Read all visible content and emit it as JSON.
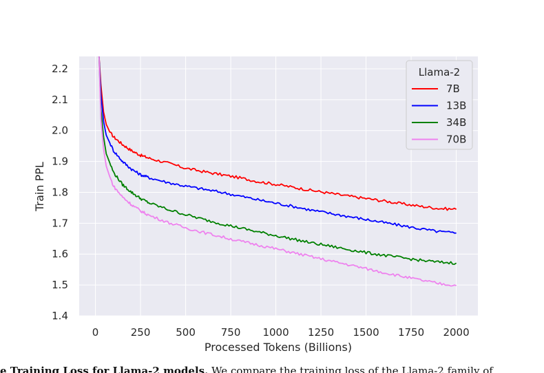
{
  "chart_data": {
    "type": "line",
    "title": "",
    "xlabel": "Processed Tokens (Billions)",
    "ylabel": "Train PPL",
    "xlim": [
      -90,
      2120
    ],
    "ylim": [
      1.4,
      2.24
    ],
    "xticks": [
      0,
      250,
      500,
      750,
      1000,
      1250,
      1500,
      1750,
      2000
    ],
    "yticks": [
      1.4,
      1.5,
      1.6,
      1.7,
      1.8,
      1.9,
      2.0,
      2.1,
      2.2
    ],
    "xtick_labels": [
      "0",
      "250",
      "500",
      "750",
      "1000",
      "1250",
      "1500",
      "1750",
      "2000"
    ],
    "ytick_labels": [
      "1.4",
      "1.5",
      "1.6",
      "1.7",
      "1.8",
      "1.9",
      "2.0",
      "2.1",
      "2.2"
    ],
    "grid": true,
    "legend_title": "Llama-2",
    "legend_position": "top-right",
    "series": [
      {
        "name": "7B",
        "color": "#ff0000",
        "x": [
          20,
          30,
          45,
          60,
          80,
          100,
          150,
          200,
          250,
          300,
          400,
          500,
          600,
          700,
          800,
          900,
          1000,
          1100,
          1200,
          1300,
          1400,
          1500,
          1600,
          1700,
          1800,
          1900,
          2000
        ],
        "y": [
          2.24,
          2.15,
          2.06,
          2.02,
          1.995,
          1.98,
          1.955,
          1.935,
          1.92,
          1.91,
          1.895,
          1.878,
          1.867,
          1.857,
          1.847,
          1.835,
          1.826,
          1.816,
          1.806,
          1.797,
          1.788,
          1.78,
          1.772,
          1.763,
          1.755,
          1.748,
          1.745
        ]
      },
      {
        "name": "13B",
        "color": "#0000ff",
        "x": [
          20,
          30,
          45,
          60,
          80,
          100,
          150,
          200,
          250,
          300,
          400,
          500,
          600,
          700,
          800,
          900,
          1000,
          1100,
          1200,
          1300,
          1400,
          1500,
          1600,
          1700,
          1800,
          1900,
          2000
        ],
        "y": [
          2.24,
          2.12,
          2.03,
          1.985,
          1.96,
          1.935,
          1.9,
          1.875,
          1.857,
          1.847,
          1.832,
          1.82,
          1.81,
          1.8,
          1.788,
          1.776,
          1.765,
          1.754,
          1.742,
          1.732,
          1.722,
          1.712,
          1.702,
          1.692,
          1.682,
          1.673,
          1.668
        ]
      },
      {
        "name": "34B",
        "color": "#008000",
        "x": [
          20,
          30,
          45,
          60,
          80,
          100,
          150,
          200,
          250,
          300,
          400,
          500,
          600,
          700,
          800,
          900,
          1000,
          1100,
          1200,
          1300,
          1400,
          1500,
          1600,
          1700,
          1800,
          1900,
          2000
        ],
        "y": [
          2.24,
          2.07,
          1.98,
          1.925,
          1.895,
          1.865,
          1.825,
          1.8,
          1.78,
          1.765,
          1.745,
          1.728,
          1.712,
          1.698,
          1.685,
          1.672,
          1.66,
          1.648,
          1.636,
          1.626,
          1.615,
          1.605,
          1.596,
          1.588,
          1.58,
          1.574,
          1.571
        ]
      },
      {
        "name": "70B",
        "color": "#ee82ee",
        "x": [
          20,
          30,
          45,
          60,
          80,
          100,
          150,
          200,
          250,
          300,
          400,
          500,
          600,
          700,
          800,
          900,
          1000,
          1100,
          1200,
          1300,
          1400,
          1500,
          1600,
          1700,
          1800,
          1900,
          2000
        ],
        "y": [
          2.24,
          2.04,
          1.94,
          1.885,
          1.85,
          1.82,
          1.785,
          1.76,
          1.74,
          1.725,
          1.703,
          1.685,
          1.67,
          1.656,
          1.642,
          1.63,
          1.617,
          1.604,
          1.591,
          1.578,
          1.566,
          1.553,
          1.54,
          1.528,
          1.516,
          1.505,
          1.498
        ]
      }
    ]
  },
  "caption": {
    "bold": "e Training Loss for Llama-2 models.",
    "text": " We compare the training loss of the Llama-2 family of"
  }
}
